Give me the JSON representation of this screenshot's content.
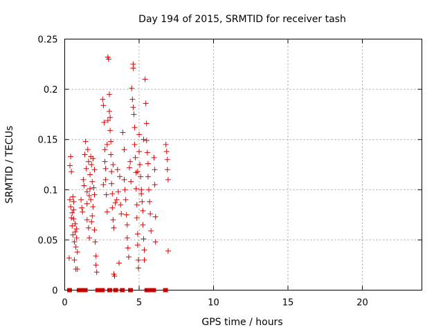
{
  "chart_data": {
    "type": "scatter",
    "title": "Day 194 of 2015, SRMTID for receiver tash",
    "xlabel": "GPS time / hours",
    "ylabel": "SRMTID / TECUs",
    "xlim": [
      0,
      24
    ],
    "ylim": [
      0,
      0.25
    ],
    "xticks": [
      0,
      5,
      10,
      15,
      20
    ],
    "xtick_labels": [
      "0",
      "5",
      "10",
      "15",
      "20"
    ],
    "yticks": [
      0,
      0.05,
      0.1,
      0.15,
      0.2,
      0.25
    ],
    "ytick_labels": [
      "0",
      "0.05",
      "0.1",
      "0.15",
      "0.2",
      "0.25"
    ],
    "grid": true,
    "marker": "+",
    "color": "#dd0000",
    "series": [
      {
        "name": "",
        "points": [
          [
            0.3,
            0.032
          ],
          [
            0.35,
            0.124
          ],
          [
            0.4,
            0.133
          ],
          [
            0.4,
            0.083
          ],
          [
            0.45,
            0.118
          ],
          [
            0.5,
            0.077
          ],
          [
            0.5,
            0.064
          ],
          [
            0.55,
            0.093
          ],
          [
            0.55,
            0.055
          ],
          [
            0.6,
            0.088
          ],
          [
            0.6,
            0.071
          ],
          [
            0.65,
            0.048
          ],
          [
            0.65,
            0.03
          ],
          [
            0.7,
            0.066
          ],
          [
            0.7,
            0.058
          ],
          [
            0.75,
            0.043
          ],
          [
            0.75,
            0.021
          ],
          [
            0.8,
            0.061
          ],
          [
            0.8,
            0.052
          ],
          [
            0.85,
            0.038
          ],
          [
            0.85,
            0.021
          ],
          [
            0.35,
            0.09
          ],
          [
            0.45,
            0.072
          ],
          [
            0.6,
            0.08
          ],
          [
            1.1,
            0.09
          ],
          [
            1.15,
            0.082
          ],
          [
            1.2,
            0.078
          ],
          [
            1.25,
            0.11
          ],
          [
            1.3,
            0.104
          ],
          [
            1.35,
            0.135
          ],
          [
            1.4,
            0.148
          ],
          [
            1.45,
            0.121
          ],
          [
            1.5,
            0.098
          ],
          [
            1.5,
            0.07
          ],
          [
            1.55,
            0.14
          ],
          [
            1.6,
            0.128
          ],
          [
            1.6,
            0.062
          ],
          [
            1.65,
            0.052
          ],
          [
            1.7,
            0.101
          ],
          [
            1.7,
            0.115
          ],
          [
            1.75,
            0.09
          ],
          [
            1.75,
            0.133
          ],
          [
            1.8,
            0.125
          ],
          [
            1.85,
            0.108
          ],
          [
            1.85,
            0.074
          ],
          [
            1.9,
            0.083
          ],
          [
            1.9,
            0.131
          ],
          [
            1.95,
            0.102
          ],
          [
            2.0,
            0.12
          ],
          [
            2.0,
            0.095
          ],
          [
            2.0,
            0.06
          ],
          [
            2.05,
            0.048
          ],
          [
            2.1,
            0.034
          ],
          [
            2.1,
            0.025
          ],
          [
            2.15,
            0.018
          ],
          [
            1.5,
            0.086
          ],
          [
            1.65,
            0.094
          ],
          [
            1.8,
            0.068
          ],
          [
            2.55,
            0.19
          ],
          [
            2.6,
            0.184
          ],
          [
            2.65,
            0.167
          ],
          [
            2.7,
            0.14
          ],
          [
            2.7,
            0.128
          ],
          [
            2.75,
            0.121
          ],
          [
            2.75,
            0.11
          ],
          [
            2.8,
            0.095
          ],
          [
            2.85,
            0.078
          ],
          [
            2.9,
            0.169
          ],
          [
            2.9,
            0.232
          ],
          [
            2.95,
            0.23
          ],
          [
            3.0,
            0.195
          ],
          [
            3.0,
            0.178
          ],
          [
            3.05,
            0.172
          ],
          [
            3.05,
            0.159
          ],
          [
            3.1,
            0.148
          ],
          [
            3.1,
            0.135
          ],
          [
            3.15,
            0.118
          ],
          [
            3.15,
            0.106
          ],
          [
            3.2,
            0.096
          ],
          [
            3.2,
            0.082
          ],
          [
            3.25,
            0.07
          ],
          [
            3.3,
            0.062
          ],
          [
            3.3,
            0.016
          ],
          [
            3.35,
            0.014
          ],
          [
            3.4,
            0.087
          ],
          [
            2.6,
            0.105
          ],
          [
            2.85,
            0.145
          ],
          [
            3.25,
            0.125
          ],
          [
            3.5,
            0.09
          ],
          [
            3.55,
            0.12
          ],
          [
            3.6,
            0.098
          ],
          [
            3.65,
            0.027
          ],
          [
            3.7,
            0.113
          ],
          [
            3.75,
            0.085
          ],
          [
            3.8,
            0.076
          ],
          [
            3.9,
            0.157
          ],
          [
            4.0,
            0.14
          ],
          [
            4.0,
            0.11
          ],
          [
            4.05,
            0.1
          ],
          [
            4.1,
            0.09
          ],
          [
            4.15,
            0.075
          ],
          [
            4.2,
            0.065
          ],
          [
            4.2,
            0.052
          ],
          [
            4.25,
            0.042
          ],
          [
            4.3,
            0.033
          ],
          [
            4.35,
            0.122
          ],
          [
            4.4,
            0.128
          ],
          [
            4.45,
            0.108
          ],
          [
            4.5,
            0.201
          ],
          [
            4.55,
            0.19
          ],
          [
            4.6,
            0.225
          ],
          [
            4.6,
            0.221
          ],
          [
            4.65,
            0.175
          ],
          [
            4.7,
            0.162
          ],
          [
            4.7,
            0.145
          ],
          [
            4.75,
            0.132
          ],
          [
            4.8,
            0.117
          ],
          [
            4.8,
            0.101
          ],
          [
            4.85,
            0.085
          ],
          [
            4.85,
            0.072
          ],
          [
            4.9,
            0.056
          ],
          [
            4.9,
            0.045
          ],
          [
            4.95,
            0.03
          ],
          [
            4.95,
            0.022
          ],
          [
            5.0,
            0.155
          ],
          [
            5.0,
            0.138
          ],
          [
            5.05,
            0.125
          ],
          [
            5.1,
            0.113
          ],
          [
            5.15,
            0.1
          ],
          [
            5.2,
            0.088
          ],
          [
            5.25,
            0.079
          ],
          [
            5.25,
            0.065
          ],
          [
            5.3,
            0.051
          ],
          [
            5.35,
            0.04
          ],
          [
            5.35,
            0.03
          ],
          [
            5.4,
            0.21
          ],
          [
            5.45,
            0.186
          ],
          [
            5.5,
            0.166
          ],
          [
            5.5,
            0.149
          ],
          [
            5.55,
            0.137
          ],
          [
            5.6,
            0.126
          ],
          [
            5.6,
            0.113
          ],
          [
            5.65,
            0.1
          ],
          [
            5.7,
            0.088
          ],
          [
            5.75,
            0.076
          ],
          [
            5.8,
            0.059
          ],
          [
            4.6,
            0.182
          ],
          [
            4.9,
            0.118
          ],
          [
            5.15,
            0.096
          ],
          [
            5.3,
            0.15
          ],
          [
            6.0,
            0.132
          ],
          [
            6.05,
            0.12
          ],
          [
            6.05,
            0.105
          ],
          [
            6.1,
            0.073
          ],
          [
            6.1,
            0.048
          ],
          [
            6.8,
            0.145
          ],
          [
            6.85,
            0.138
          ],
          [
            6.9,
            0.13
          ],
          [
            6.9,
            0.12
          ],
          [
            6.95,
            0.11
          ],
          [
            6.95,
            0.039
          ]
        ]
      }
    ],
    "baseline_markers": [
      0.3,
      0.95,
      1.05,
      1.2,
      1.35,
      2.2,
      2.35,
      2.5,
      3.0,
      3.4,
      3.85,
      4.4,
      5.5,
      5.65,
      5.85,
      5.95,
      6.75
    ]
  }
}
